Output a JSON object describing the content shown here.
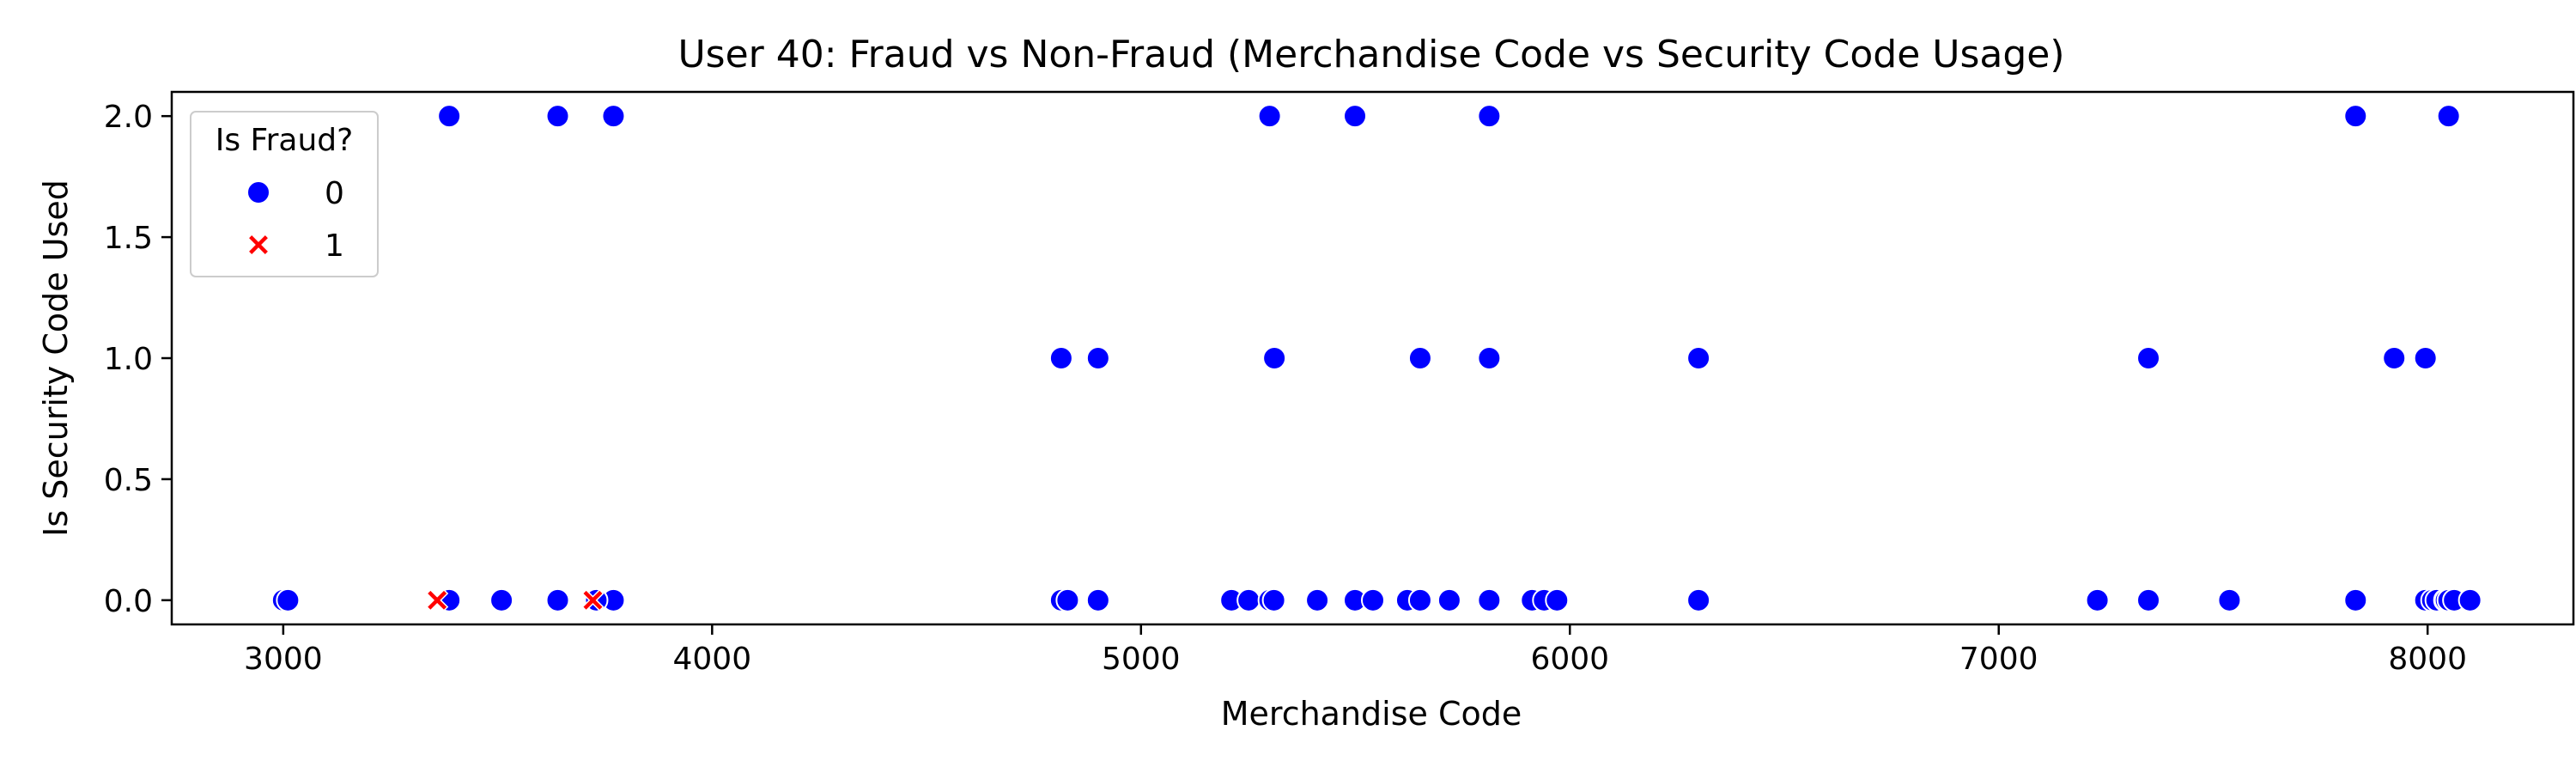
{
  "chart_data": {
    "type": "scatter",
    "title": "User 40: Fraud vs Non-Fraud (Merchandise Code vs Security Code Usage)",
    "xlabel": "Merchandise Code",
    "ylabel": "Is Security Code Used",
    "xlim": [
      2740,
      8340
    ],
    "ylim": [
      -0.1,
      2.1
    ],
    "xticks": [
      3000,
      4000,
      5000,
      6000,
      7000,
      8000
    ],
    "yticks": [
      0.0,
      0.5,
      1.0,
      1.5,
      2.0
    ],
    "xtick_labels": [
      "3000",
      "4000",
      "5000",
      "6000",
      "7000",
      "8000"
    ],
    "ytick_labels": [
      "0.0",
      "0.5",
      "1.0",
      "1.5",
      "2.0"
    ],
    "grid": false,
    "legend": {
      "title": "Is Fraud?",
      "placement": "top-left",
      "entries": [
        {
          "label": "0",
          "marker": "circle",
          "color": "#0000ff"
        },
        {
          "label": "1",
          "marker": "x",
          "color": "#ff0000"
        }
      ]
    },
    "series": [
      {
        "name": "0",
        "marker": "circle",
        "color": "#0000ff",
        "points": [
          [
            3000,
            0
          ],
          [
            3011,
            0
          ],
          [
            3387,
            0
          ],
          [
            3509,
            0
          ],
          [
            3640,
            0
          ],
          [
            3770,
            0
          ],
          [
            3730,
            0
          ],
          [
            3387,
            2
          ],
          [
            3640,
            2
          ],
          [
            3770,
            2
          ],
          [
            4814,
            0
          ],
          [
            4829,
            0
          ],
          [
            4900,
            0
          ],
          [
            5211,
            0
          ],
          [
            5251,
            0
          ],
          [
            5300,
            0
          ],
          [
            5310,
            0
          ],
          [
            5411,
            0
          ],
          [
            5499,
            0
          ],
          [
            5541,
            0
          ],
          [
            5621,
            0
          ],
          [
            5651,
            0
          ],
          [
            5719,
            0
          ],
          [
            5812,
            0
          ],
          [
            5912,
            0
          ],
          [
            5940,
            0
          ],
          [
            5970,
            0
          ],
          [
            6300,
            0
          ],
          [
            4814,
            1
          ],
          [
            4900,
            1
          ],
          [
            5311,
            1
          ],
          [
            5651,
            1
          ],
          [
            5812,
            1
          ],
          [
            6300,
            1
          ],
          [
            5300,
            2
          ],
          [
            5499,
            2
          ],
          [
            5812,
            2
          ],
          [
            7230,
            0
          ],
          [
            7349,
            0
          ],
          [
            7538,
            0
          ],
          [
            7832,
            0
          ],
          [
            7995,
            0
          ],
          [
            8011,
            0
          ],
          [
            8021,
            0
          ],
          [
            8041,
            0
          ],
          [
            8043,
            0
          ],
          [
            8049,
            0
          ],
          [
            8062,
            0
          ],
          [
            8099,
            0
          ],
          [
            7349,
            1
          ],
          [
            7922,
            1
          ],
          [
            7995,
            1
          ],
          [
            7832,
            2
          ],
          [
            8049,
            2
          ]
        ]
      },
      {
        "name": "1",
        "marker": "x",
        "color": "#ff0000",
        "points": [
          [
            3359,
            0
          ],
          [
            3722,
            0
          ]
        ]
      }
    ]
  }
}
